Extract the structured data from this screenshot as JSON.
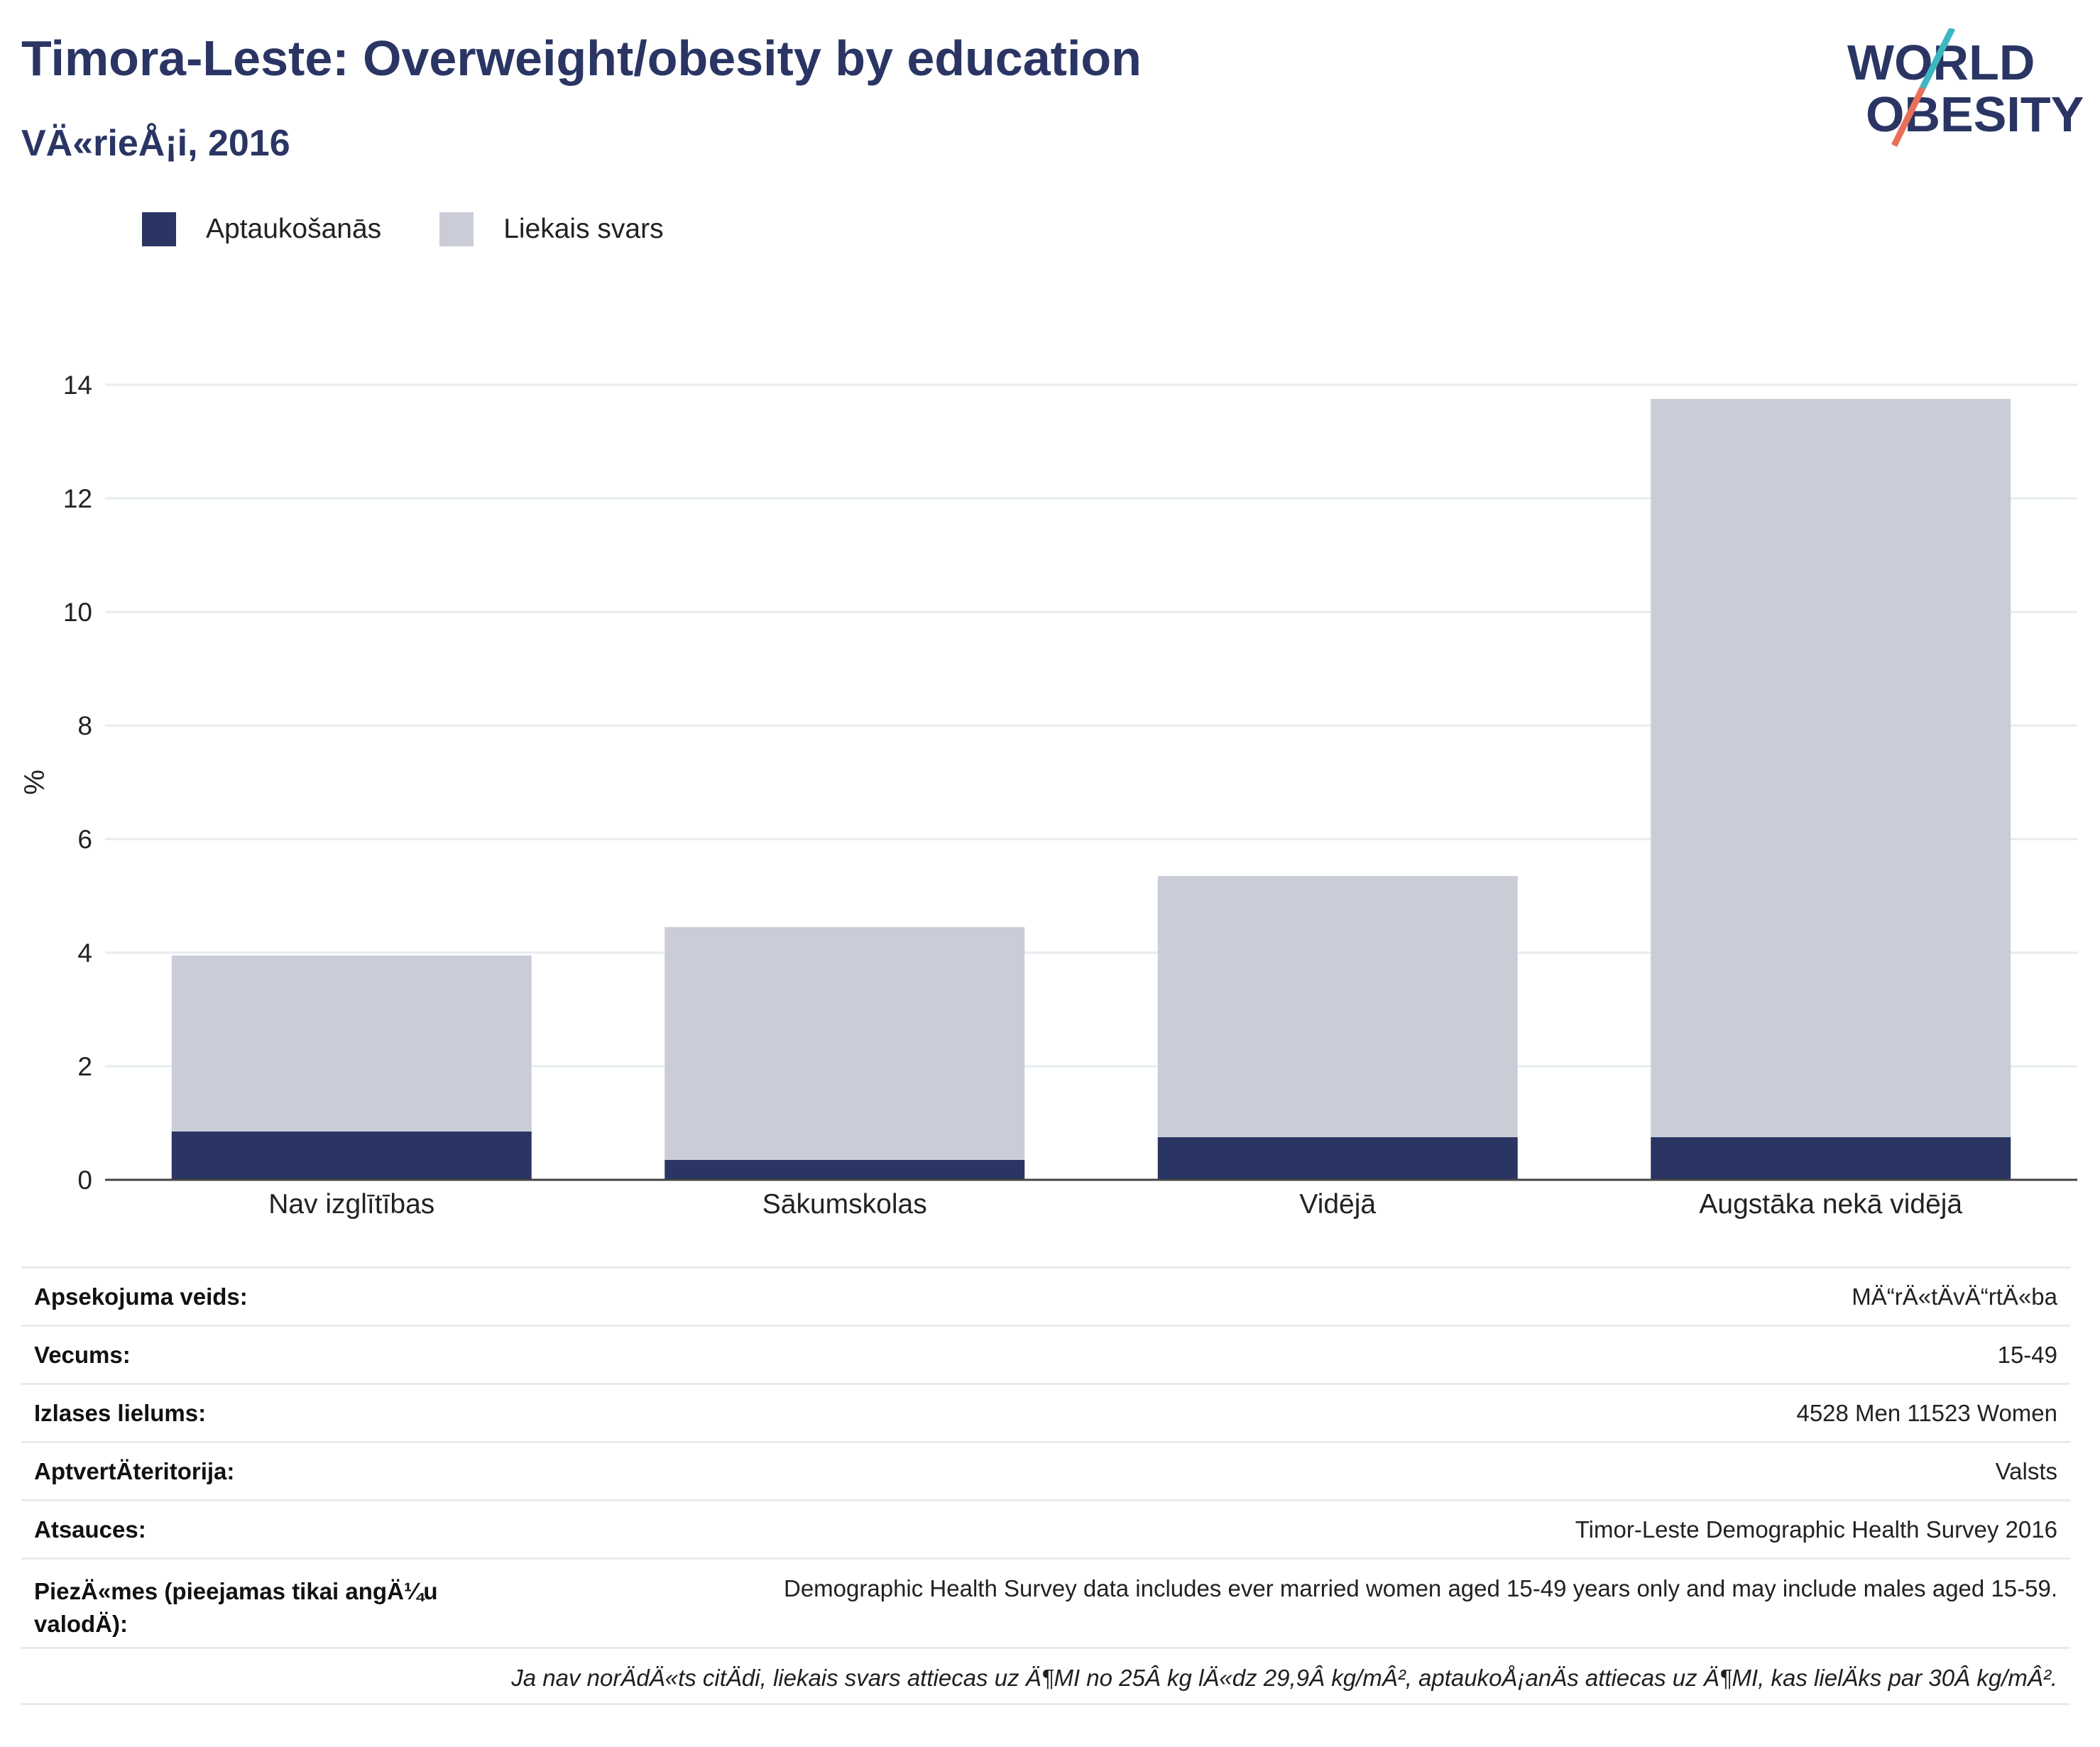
{
  "header": {
    "title": "Timora-Leste: Overweight/obesity by education",
    "subtitle": "VÄ«rieÅ¡i, 2016"
  },
  "logo": {
    "line1": "WORLD",
    "line2": "OBESITY",
    "icon": "world-obesity-logo"
  },
  "colors": {
    "obesity": "#2a3564",
    "overweight": "#cacdd8",
    "text": "#2a3564",
    "logo_slash_top": "#3bb7c0",
    "logo_slash_bottom": "#e8705a"
  },
  "chart_data": {
    "type": "bar",
    "stacked": true,
    "categories": [
      "Nav izglītības",
      "Sākumskolas",
      "Vidējā",
      "Augstāka nekā vidējā"
    ],
    "series": [
      {
        "name": "Aptaukošanās",
        "values": [
          0.85,
          0.35,
          0.75,
          0.75
        ]
      },
      {
        "name": "Liekais svars",
        "values": [
          3.1,
          4.1,
          4.6,
          13.0
        ]
      }
    ],
    "ylabel": "%",
    "ylim": [
      0,
      14
    ],
    "yticks": [
      0,
      2,
      4,
      6,
      8,
      10,
      12,
      14
    ],
    "grid": true,
    "legend": "top-left"
  },
  "meta": [
    {
      "key": "Apsekojuma veids:",
      "value": "MÄ“rÄ«tÄvÄ“rtÄ«ba"
    },
    {
      "key": "Vecums:",
      "value": "15-49"
    },
    {
      "key": "Izlases lielums:",
      "value": "4528 Men 11523 Women"
    },
    {
      "key": "AptvertÄteritorija:",
      "value": "Valsts"
    },
    {
      "key": "Atsauces:",
      "value": "Timor-Leste Demographic Health Survey 2016"
    },
    {
      "key": "PiezÄ«mes (pieejamas tikai angÄ¼u valodÄ):",
      "value": "Demographic Health Survey data includes ever married women aged 15-49 years only and may include males aged 15-59."
    }
  ],
  "footnote": "Ja nav norÄdÄ«ts citÄdi, liekais svars attiecas uz Ä¶MI no 25Â kg lÄ«dz 29,9Â kg/mÂ², aptaukoÅ¡anÄs attiecas uz Ä¶MI, kas lielÄks par 30Â kg/mÂ²."
}
